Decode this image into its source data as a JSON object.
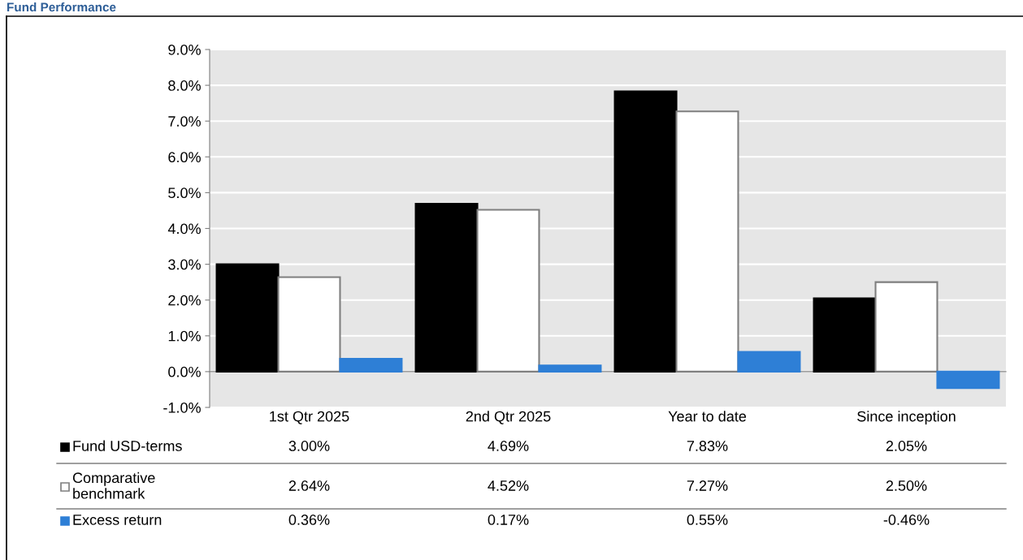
{
  "chart_data": {
    "type": "bar",
    "title": "Fund Performance",
    "categories": [
      "1st Qtr 2025",
      "2nd Qtr 2025",
      "Year to date",
      "Since inception"
    ],
    "series": [
      {
        "name": "Fund USD-terms",
        "color": "#000000",
        "values": [
          3.0,
          4.69,
          7.83,
          2.05
        ],
        "value_labels": [
          "3.00%",
          "4.69%",
          "7.83%",
          "2.05%"
        ]
      },
      {
        "name": "Comparative\nbenchmark",
        "color": "#ffffff",
        "values": [
          2.64,
          4.52,
          7.27,
          2.5
        ],
        "value_labels": [
          "2.64%",
          "4.52%",
          "7.27%",
          "2.50%"
        ]
      },
      {
        "name": "Excess return",
        "color": "#2e7fd6",
        "values": [
          0.36,
          0.17,
          0.55,
          -0.46
        ],
        "value_labels": [
          "0.36%",
          "0.17%",
          "0.55%",
          "-0.46%"
        ]
      }
    ],
    "ylim": [
      -1.0,
      9.0
    ],
    "yticks": [
      {
        "value": -1.0,
        "label": "-1.0%"
      },
      {
        "value": 0,
        "label": "0.0%"
      },
      {
        "value": 1.0,
        "label": "1.0%"
      },
      {
        "value": 2.0,
        "label": "2.0%"
      },
      {
        "value": 3.0,
        "label": "3.0%"
      },
      {
        "value": 4.0,
        "label": "4.0%"
      },
      {
        "value": 5.0,
        "label": "5.0%"
      },
      {
        "value": 6.0,
        "label": "6.0%"
      },
      {
        "value": 7.0,
        "label": "7.0%"
      },
      {
        "value": 8.0,
        "label": "8.0%"
      },
      {
        "value": 9.0,
        "label": "9.0%"
      }
    ],
    "grid": "y",
    "legend": "bottom"
  }
}
